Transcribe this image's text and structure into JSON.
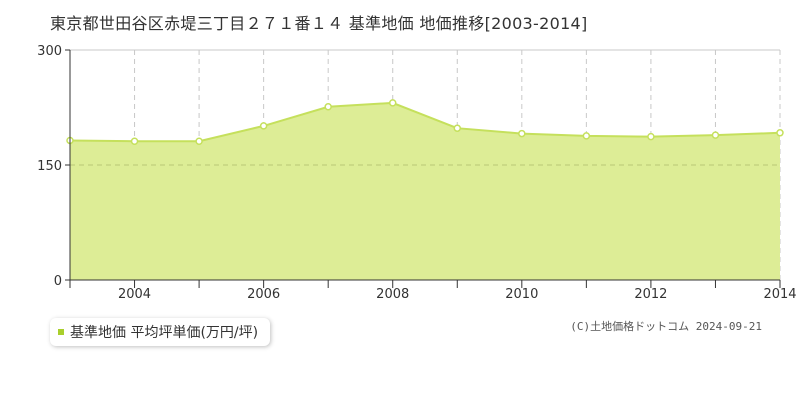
{
  "header": {
    "title": "東京都世田谷区赤堤三丁目２７１番１４ 基準地価 地価推移[2003-2014]"
  },
  "legend": {
    "label": "基準地価 平均坪単価(万円/坪)"
  },
  "footer": {
    "copyright": "(C)土地価格ドットコム 2024-09-21"
  },
  "colors": {
    "fill": "#dded96",
    "line": "#c5e05c",
    "swatch": "#a9cf2c",
    "grid": "#c8c8c8",
    "marker": "#ffffff"
  },
  "chart_data": {
    "type": "area",
    "x": [
      2003,
      2004,
      2005,
      2006,
      2007,
      2008,
      2009,
      2010,
      2011,
      2012,
      2013,
      2014
    ],
    "series": [
      {
        "name": "基準地価 平均坪単価(万円/坪)",
        "values": [
          182,
          181,
          181,
          201,
          226,
          231,
          198,
          191,
          188,
          187,
          189,
          192
        ]
      }
    ],
    "xlim": [
      2003,
      2014
    ],
    "ylim": [
      0,
      300
    ],
    "yticks": [
      0,
      150,
      300
    ],
    "xtick_labels": [
      "2004",
      "2006",
      "2008",
      "2010",
      "2012",
      "2014"
    ],
    "grid": true
  }
}
